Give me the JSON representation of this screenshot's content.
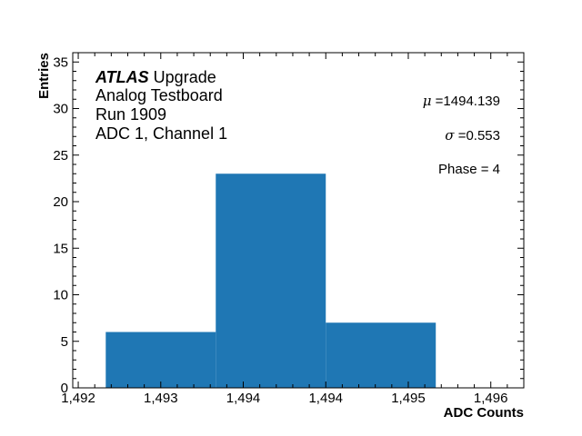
{
  "chart_data": {
    "type": "bar",
    "subtype": "histogram",
    "title": "",
    "xlabel": "ADC Counts",
    "ylabel": "Entries",
    "xlim": [
      1492.2,
      1496.3
    ],
    "ylim": [
      0,
      36
    ],
    "x_tick_labels": [
      "1,492",
      "1,493",
      "1,494",
      "1,494",
      "1,495",
      "1,496"
    ],
    "y_tick_labels": [
      "0",
      "5",
      "10",
      "15",
      "20",
      "25",
      "30",
      "35"
    ],
    "bins": [
      {
        "left": 1492.5,
        "right": 1493.5,
        "value": 6
      },
      {
        "left": 1493.5,
        "right": 1494.5,
        "value": 23
      },
      {
        "left": 1494.5,
        "right": 1495.5,
        "value": 7
      }
    ],
    "categories": [
      "1492.5-1493.5",
      "1493.5-1494.5",
      "1494.5-1495.5"
    ],
    "values": [
      6,
      23,
      7
    ],
    "bar_color": "#1f77b4",
    "grid": false,
    "annotations": {
      "experiment_bold": "ATLAS",
      "experiment_rest": " Upgrade",
      "lines": [
        "Analog Testboard",
        "Run 1909",
        "ADC 1, Channel 1"
      ],
      "mu_symbol": "μ",
      "mu_text": " =1494.139",
      "sigma_symbol": "σ",
      "sigma_text": " =0.553",
      "phase_text": "Phase = 4"
    }
  }
}
